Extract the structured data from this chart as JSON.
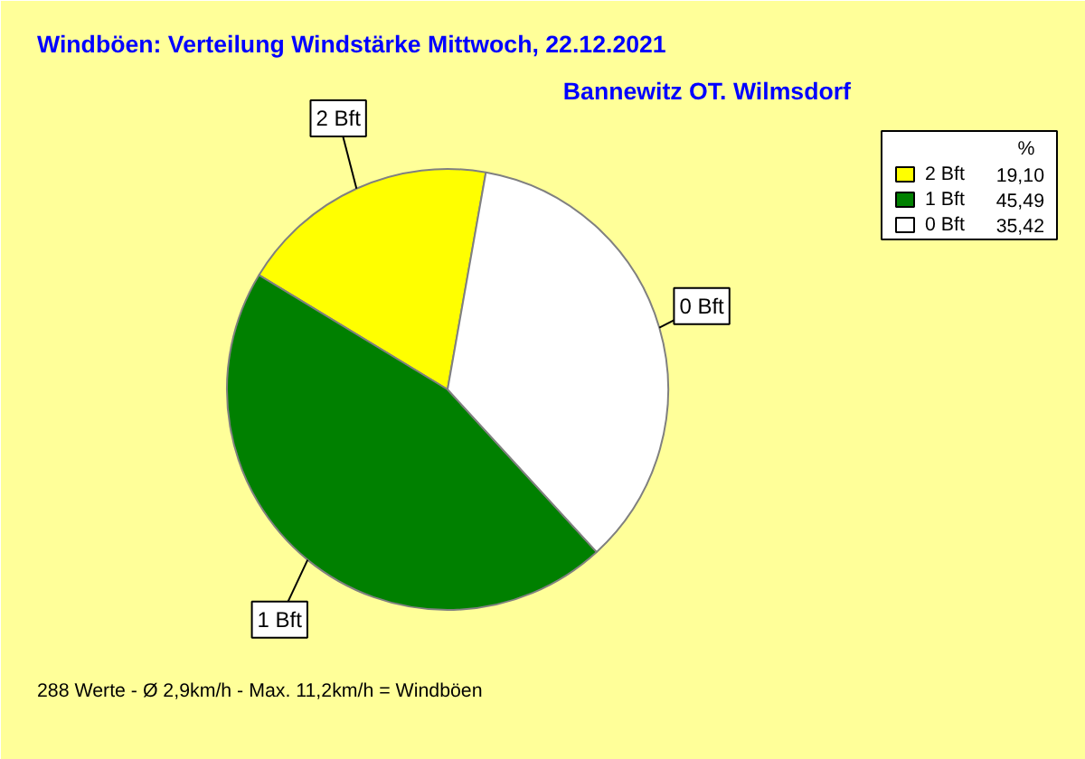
{
  "chart_data": {
    "type": "pie",
    "title": "Windböen: Verteilung Windstärke  Mittwoch, 22.12.2021",
    "subtitle": "Bannewitz OT. Wilmsdorf",
    "categories": [
      "2 Bft",
      "1 Bft",
      "0 Bft"
    ],
    "values": [
      19.1,
      45.49,
      35.42
    ],
    "value_labels": [
      "19,10",
      "45,49",
      "35,42"
    ],
    "colors": [
      "#ffff00",
      "#008000",
      "#ffffff"
    ],
    "legend_title": "%",
    "legend": "top right",
    "annotations": [
      "288 Werte   -   Ø 2,9km/h  -  Max. 11,2km/h = Windböen"
    ]
  }
}
